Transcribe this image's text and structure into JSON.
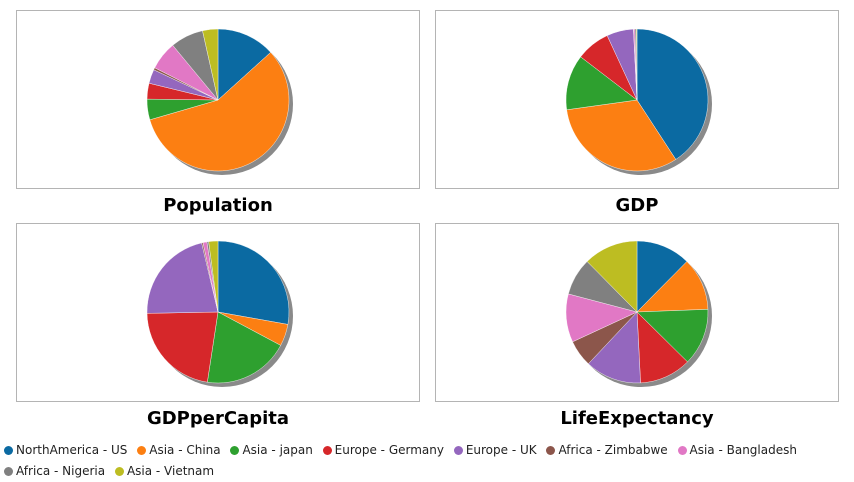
{
  "chart_data": [
    {
      "type": "pie",
      "title": "Population",
      "categories": [
        "NorthAmerica - US",
        "Asia - China",
        "Asia - japan",
        "Europe - Germany",
        "Europe - UK",
        "Africa - Zimbabwe",
        "Asia - Bangladesh",
        "Africa - Nigeria",
        "Asia - Vietnam"
      ],
      "values": [
        13.3,
        57.2,
        4.7,
        3.6,
        3.2,
        0.5,
        6.5,
        7.5,
        3.5
      ]
    },
    {
      "type": "pie",
      "title": "GDP",
      "categories": [
        "NorthAmerica - US",
        "Asia - China",
        "Asia - japan",
        "Europe - Germany",
        "Europe - UK",
        "Africa - Zimbabwe",
        "Asia - Bangladesh",
        "Africa - Nigeria",
        "Asia - Vietnam"
      ],
      "values": [
        40.8,
        32.0,
        12.6,
        7.7,
        6.1,
        0.05,
        0.3,
        0.3,
        0.15
      ]
    },
    {
      "type": "pie",
      "title": "GDPperCapita",
      "categories": [
        "NorthAmerica - US",
        "Asia - China",
        "Asia - japan",
        "Europe - Germany",
        "Europe - UK",
        "Africa - Zimbabwe",
        "Asia - Bangladesh",
        "Africa - Nigeria",
        "Asia - Vietnam"
      ],
      "values": [
        27.8,
        5.0,
        19.6,
        22.3,
        21.6,
        0.3,
        0.9,
        0.4,
        2.1
      ]
    },
    {
      "type": "pie",
      "title": "LifeExpectancy",
      "categories": [
        "NorthAmerica - US",
        "Asia - China",
        "Asia - japan",
        "Europe - Germany",
        "Europe - UK",
        "Africa - Zimbabwe",
        "Asia - Bangladesh",
        "Africa - Nigeria",
        "Asia - Vietnam"
      ],
      "values": [
        12.4,
        12.0,
        13.0,
        11.8,
        12.8,
        6.1,
        11.0,
        8.5,
        12.4
      ]
    }
  ],
  "colors": [
    "#1f77b4",
    "#ff7f0e",
    "#2ca02c",
    "#d62728",
    "#9467bd",
    "#8c564b",
    "#e377c2",
    "#7f7f7f",
    "#bcbd22"
  ],
  "slice_colors": [
    "#0b6aa2",
    "#fc7f12",
    "#2ea02f",
    "#d6272a",
    "#9467be",
    "#8c564b",
    "#e178c5",
    "#808080",
    "#bdbd22"
  ],
  "legend": [
    {
      "label": "NorthAmerica - US",
      "color": "#0b6aa2"
    },
    {
      "label": "Asia - China",
      "color": "#fc7f12"
    },
    {
      "label": "Asia - japan",
      "color": "#2ea02f"
    },
    {
      "label": "Europe - Germany",
      "color": "#d6272a"
    },
    {
      "label": "Europe - UK",
      "color": "#9467be"
    },
    {
      "label": "Africa - Zimbabwe",
      "color": "#8c564b"
    },
    {
      "label": "Asia - Bangladesh",
      "color": "#e178c5"
    },
    {
      "label": "Africa - Nigeria",
      "color": "#808080"
    },
    {
      "label": "Asia - Vietnam",
      "color": "#bdbd22"
    }
  ],
  "titles": {
    "population": "Population",
    "gdp": "GDP",
    "gdp_per_capita": "GDPperCapita",
    "life_expectancy": "LifeExpectancy"
  }
}
